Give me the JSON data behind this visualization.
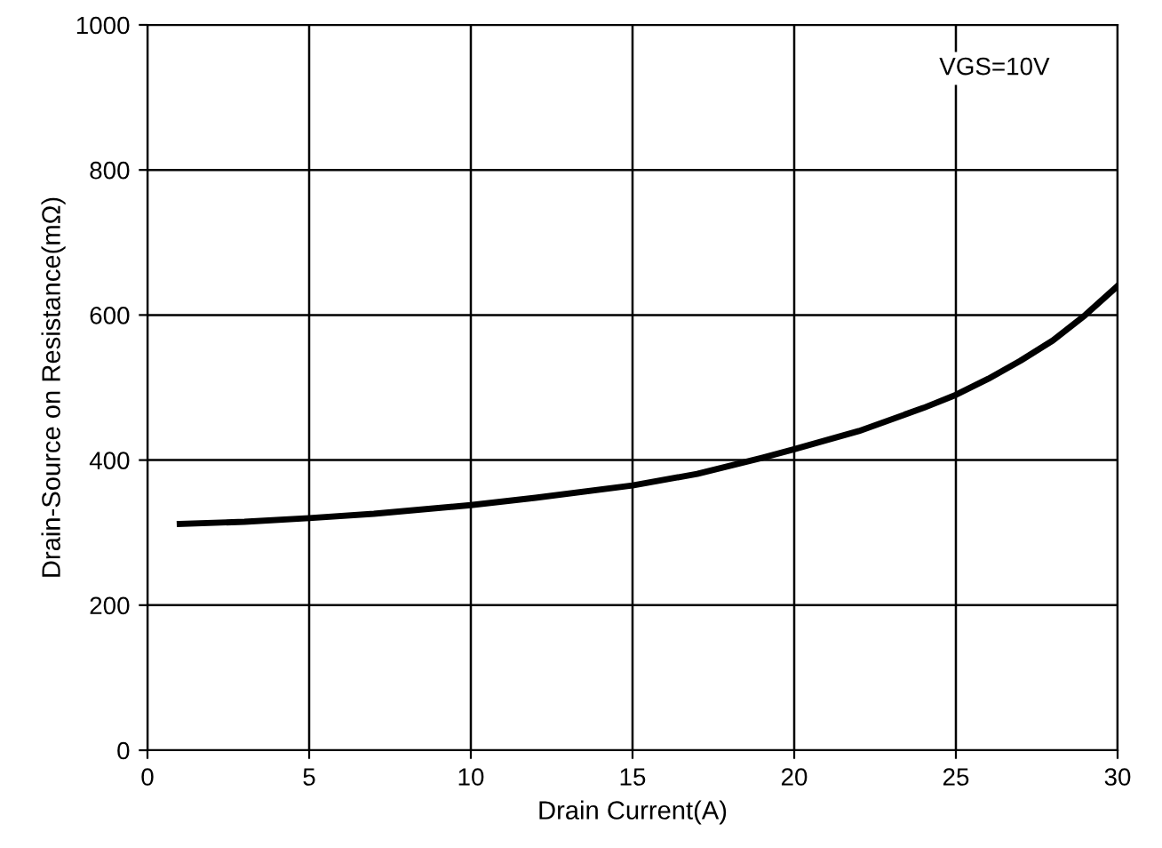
{
  "chart_data": {
    "type": "line",
    "xlabel": "Drain Current(A)",
    "ylabel": "Drain-Source on Resistance(mΩ)",
    "annotations": [
      "VGS=10V"
    ],
    "x": [
      1,
      3,
      5,
      7,
      10,
      12,
      15,
      17,
      19,
      20,
      22,
      24,
      25,
      26,
      27,
      28,
      29,
      30
    ],
    "series": [
      {
        "color": "#000000",
        "values": [
          312,
          315,
          320,
          326,
          338,
          348,
          365,
          381,
          403,
          415,
          440,
          472,
          490,
          512,
          537,
          565,
          600,
          640
        ]
      }
    ],
    "xlim": [
      0,
      30
    ],
    "ylim": [
      0,
      1000
    ],
    "xticks": [
      0,
      5,
      10,
      15,
      20,
      25,
      30
    ],
    "yticks": [
      0,
      200,
      400,
      600,
      800,
      1000
    ],
    "grid": true,
    "marker": "none",
    "line_style": "solid"
  }
}
